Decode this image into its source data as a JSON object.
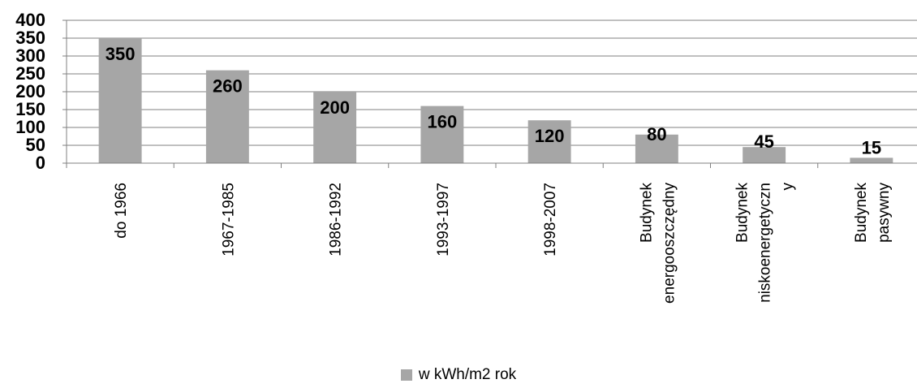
{
  "chart_data": {
    "type": "bar",
    "categories": [
      [
        "do 1966"
      ],
      [
        "1967-1985"
      ],
      [
        "1986-1992"
      ],
      [
        "1993-1997"
      ],
      [
        "1998-2007"
      ],
      [
        "Budynek",
        "energooszczędny"
      ],
      [
        "Budynek",
        "niskoenergetyczn",
        "y"
      ],
      [
        "Budynek",
        "pasywny"
      ]
    ],
    "series": [
      {
        "name": "w kWh/m2 rok",
        "values": [
          350,
          260,
          200,
          160,
          120,
          80,
          45,
          15
        ]
      }
    ],
    "ylim": [
      0,
      400
    ],
    "yticks": [
      0,
      50,
      100,
      150,
      200,
      250,
      300,
      350,
      400
    ],
    "grid": true,
    "legend_position": "bottom",
    "colors": {
      "bar": "#a6a6a6",
      "grid": "#808080",
      "axis": "#808080",
      "text": "#000000"
    }
  }
}
